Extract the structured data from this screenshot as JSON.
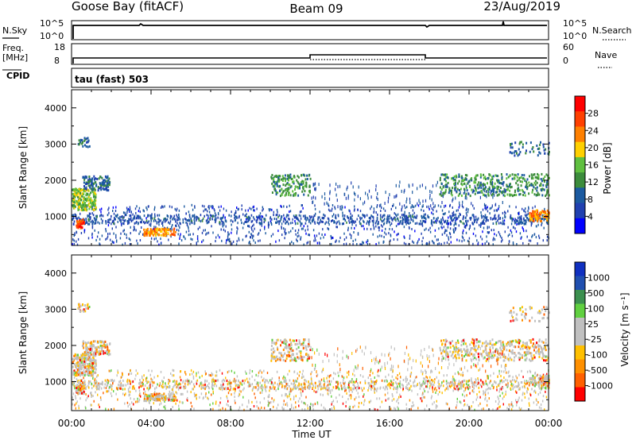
{
  "header": {
    "station": "Goose Bay (fitACF)",
    "beam": "Beam 09",
    "date": "23/Aug/2019"
  },
  "strips": {
    "nsky_label": "N.Sky",
    "nsearch_label": "N.Search",
    "noise_ticks": [
      "10^5",
      "10^0"
    ],
    "freq_label": "Freq.",
    "freq_unit": "[MHz]",
    "freq_ticks": [
      "18",
      "8"
    ],
    "nave_label": "Nave",
    "nave_ticks": [
      "60",
      "0"
    ],
    "cpid_label": "CPID",
    "cpid_value": "tau (fast) 503"
  },
  "colors": {
    "power_scale": [
      "#0000ff",
      "#2040b0",
      "#1b5aa0",
      "#3c8c3c",
      "#60c040",
      "#ffd000",
      "#ff8000",
      "#ff4000",
      "#ff0000"
    ],
    "velocity_scale": [
      "#ff0000",
      "#ff6000",
      "#ff9000",
      "#ffc000",
      "#c0c0c0",
      "#c0c0c0",
      "#60d040",
      "#3c9050",
      "#2050b0",
      "#1030c0"
    ]
  },
  "chart_data": [
    {
      "type": "heatmap",
      "name": "power",
      "ylabel": "Slant Range [km]",
      "yticks": [
        "1000",
        "2000",
        "3000",
        "4000"
      ],
      "ylim": [
        200,
        4500
      ],
      "xlim": [
        0,
        24
      ],
      "colorbar_label": "Power [dB]",
      "colorbar_ticks": [
        "4",
        "8",
        "12",
        "16",
        "20",
        "24",
        "28"
      ],
      "colorbar_range": [
        0,
        32
      ]
    },
    {
      "type": "heatmap",
      "name": "velocity",
      "ylabel": "Slant Range [km]",
      "yticks": [
        "1000",
        "2000",
        "3000",
        "4000"
      ],
      "ylim": [
        200,
        4500
      ],
      "xlim": [
        0,
        24
      ],
      "xlabel": "Time UT",
      "xticks": [
        "00:00",
        "04:00",
        "08:00",
        "12:00",
        "16:00",
        "20:00",
        "00:00"
      ],
      "colorbar_label": "Velocity [m s⁻¹]",
      "colorbar_ticks": [
        "1000",
        "500",
        "100",
        "25",
        "-25",
        "-100",
        "-500",
        "-1000"
      ]
    }
  ]
}
